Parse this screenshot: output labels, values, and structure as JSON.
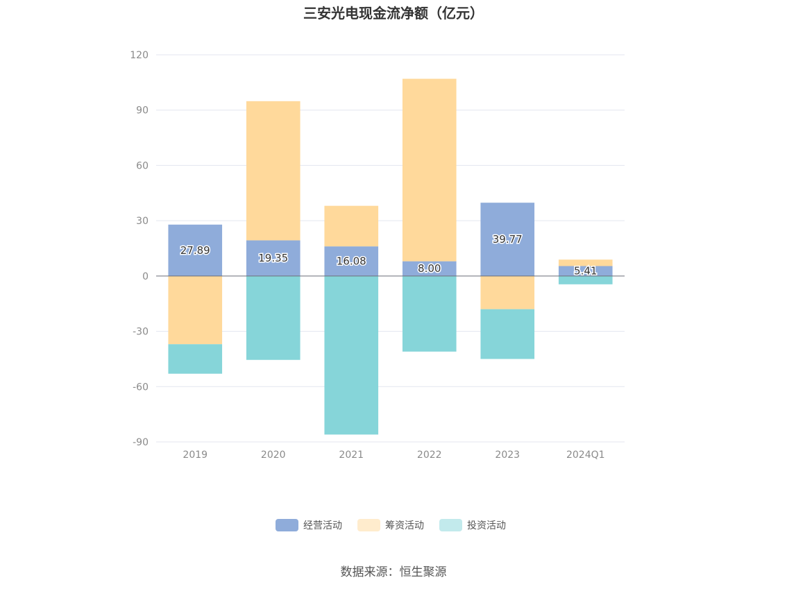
{
  "chart_data": {
    "type": "bar",
    "stacked": true,
    "title": "三安光电现金流净额（亿元）",
    "categories": [
      "2019",
      "2020",
      "2021",
      "2022",
      "2023",
      "2024Q1"
    ],
    "series": [
      {
        "name": "经营活动",
        "color": "#8facda",
        "values": [
          27.89,
          19.35,
          16.08,
          8.0,
          39.77,
          5.41
        ]
      },
      {
        "name": "筹资活动",
        "color": "#ffd99b",
        "values": [
          -37.0,
          75.5,
          22.0,
          99.0,
          -18.0,
          3.5
        ]
      },
      {
        "name": "投资活动",
        "color": "#86d5d9",
        "values": [
          -16.0,
          -45.5,
          -86.0,
          -41.0,
          -27.0,
          -4.5
        ]
      }
    ],
    "data_labels": [
      "27.89",
      "19.35",
      "16.08",
      "8.00",
      "39.77",
      "5.41"
    ],
    "y_ticks": [
      "120",
      "90",
      "60",
      "30",
      "0",
      "-30",
      "-60",
      "-90"
    ],
    "ylim": [
      -90,
      120
    ],
    "grid": true,
    "legend_position": "bottom",
    "source": "数据来源：恒生聚源"
  }
}
